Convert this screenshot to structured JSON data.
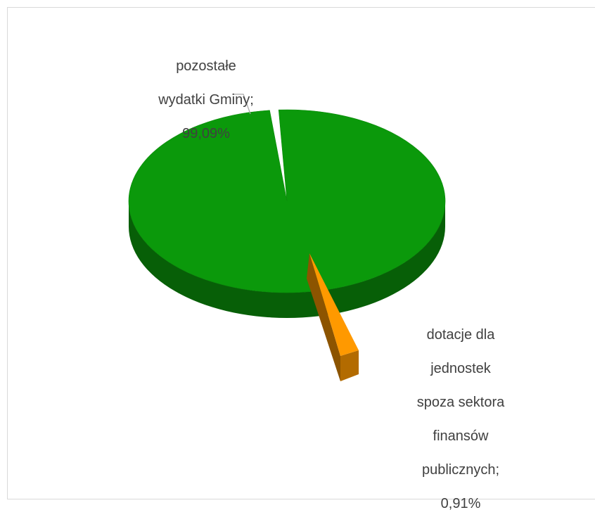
{
  "chart_data": {
    "type": "pie",
    "style": "3d-exploded",
    "slices": [
      {
        "name": "pozostałe wydatki Gminy",
        "value": 99.09,
        "color": "#0b990b",
        "label_lines": [
          "pozostałe",
          "wydatki Gminy;",
          "99,09%"
        ]
      },
      {
        "name": "dotacje dla jednostek spoza sektora finansów publicznych",
        "value": 0.91,
        "color": "#ff9900",
        "label_lines": [
          "dotacje dla",
          "jednostek",
          "spoza sektora",
          "finansów",
          "publicznych;",
          "0,91%"
        ]
      }
    ],
    "legend": "none",
    "leader_line_color": "#a6a6a6"
  }
}
